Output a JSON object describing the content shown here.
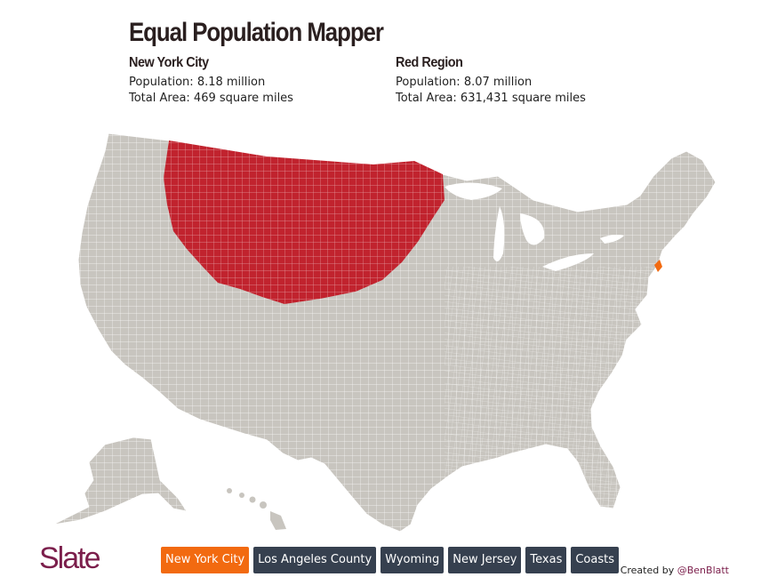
{
  "header": {
    "title": "Equal Population Mapper"
  },
  "left_panel": {
    "name": "New York City",
    "population": "Population: 8.18 million",
    "area": "Total Area: 469 square miles"
  },
  "right_panel": {
    "name": "Red Region",
    "population": "Population: 8.07 million",
    "area": "Total Area: 631,431 square miles"
  },
  "map": {
    "base_color": "#c8c5bf",
    "border_color": "#ffffff",
    "red_region_color": "#c1232e",
    "nyc_color": "#f26a10",
    "icons": [
      "us-counties-map",
      "alaska-inset",
      "hawaii-inset"
    ]
  },
  "footer": {
    "logo_text": "Slate",
    "buttons": [
      {
        "label": "New York City",
        "active": true
      },
      {
        "label": "Los Angeles County",
        "active": false
      },
      {
        "label": "Wyoming",
        "active": false
      },
      {
        "label": "New Jersey",
        "active": false
      },
      {
        "label": "Texas",
        "active": false
      },
      {
        "label": "Coasts",
        "active": false
      }
    ],
    "credit_prefix": "Created by ",
    "credit_handle": "@BenBlatt"
  },
  "colors": {
    "accent_active": "#f26a10",
    "button_bg": "#36404f",
    "logo": "#7b1e4b"
  }
}
